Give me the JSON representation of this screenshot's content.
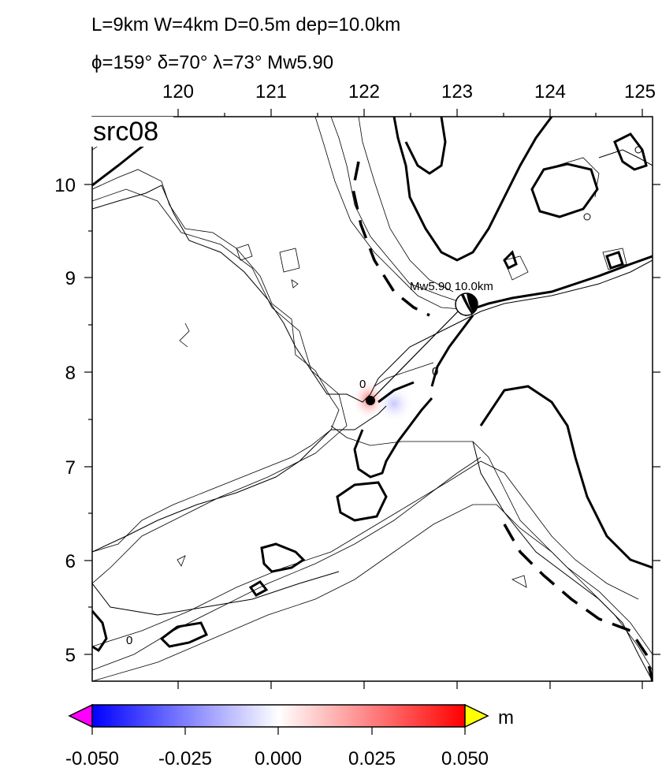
{
  "header": {
    "line1": "L=9km W=4km D=0.5m dep=10.0km",
    "line2": "ϕ=159° δ=70° λ=73° Mw5.90"
  },
  "map": {
    "label": "src08",
    "lon_ticks": [
      "120",
      "121",
      "122",
      "123",
      "124",
      "125"
    ],
    "lat_ticks": [
      "10",
      "9",
      "8",
      "7",
      "6",
      "5"
    ],
    "contour_labels": [
      "0",
      "0",
      "0"
    ],
    "event": {
      "label": "Mw5.90  10.0km",
      "lon": 123.1,
      "lat": 8.7
    },
    "source_point": {
      "lon": 122.1,
      "lat": 7.7
    }
  },
  "colorbar": {
    "ticks": [
      "-0.050",
      "-0.025",
      "0.000",
      "0.025",
      "0.050"
    ],
    "unit": "m",
    "range": [
      -0.05,
      0.05
    ],
    "colors": {
      "low": "#0000ff",
      "mid": "#ffffff",
      "high": "#ff0000",
      "under": "#ff00ff",
      "over": "#ffff00"
    }
  }
}
